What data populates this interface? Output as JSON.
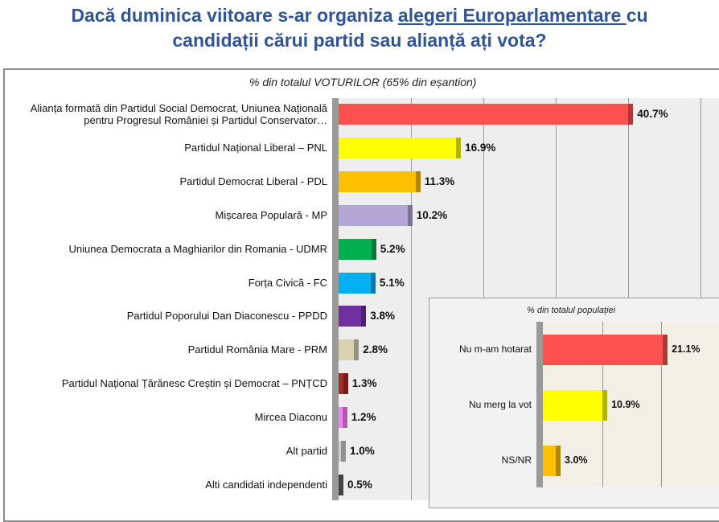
{
  "title": {
    "line1_a": "Dacă duminica viitoare s-ar organiza ",
    "line1_u": "alegeri Europarlamentare ",
    "line1_b": "cu",
    "line2": "candidații cărui partid sau alianță ați vota?"
  },
  "chart_data": [
    {
      "type": "bar",
      "orientation": "horizontal",
      "title": "% din totalul VOTURILOR (65% din eșantion)",
      "xlim": [
        0,
        50
      ],
      "categories": [
        "Alianța formată din Partidul Social Democrat, Uniunea Națională pentru Progresul României și Partidul Conservator…",
        "Partidul Național Liberal – PNL",
        "Partidul Democrat Liberal - PDL",
        "Mișcarea Populară - MP",
        "Uniunea Democrata a Maghiarilor din Romania - UDMR",
        "Forța Civică - FC",
        "Partidul Poporului Dan Diaconescu - PPDD",
        "Partidul România Mare - PRM",
        "Partidul Național Țărănesc Creștin și Democrat – PNȚCD",
        "Mircea Diaconu",
        "Alt partid",
        "Alti candidati independenti"
      ],
      "values": [
        40.7,
        16.9,
        11.3,
        10.2,
        5.2,
        5.1,
        3.8,
        2.8,
        1.3,
        1.2,
        1.0,
        0.5
      ],
      "labels": [
        "40.7%",
        "16.9%",
        "11.3%",
        "10.2%",
        "5.2%",
        "5.1%",
        "3.8%",
        "2.8%",
        "1.3%",
        "1.2%",
        "1.0%",
        "0.5%"
      ],
      "colors": [
        "#ff5050",
        "#ffff00",
        "#ffc000",
        "#b4a7d6",
        "#00b050",
        "#00b0f0",
        "#7030a0",
        "#d9d2b0",
        "#a52a2a",
        "#ff80ff",
        "#d0d0d0",
        "#606060"
      ]
    },
    {
      "type": "bar",
      "orientation": "horizontal",
      "title": "% din totalul populației",
      "xlim": [
        0,
        30
      ],
      "categories": [
        "Nu m-am hotarat",
        "Nu merg la vot",
        "NS/NR"
      ],
      "values": [
        21.1,
        10.9,
        3.0
      ],
      "labels": [
        "21.1%",
        "10.9%",
        "3.0%"
      ],
      "colors": [
        "#ff5050",
        "#ffff00",
        "#ffc000"
      ]
    }
  ]
}
